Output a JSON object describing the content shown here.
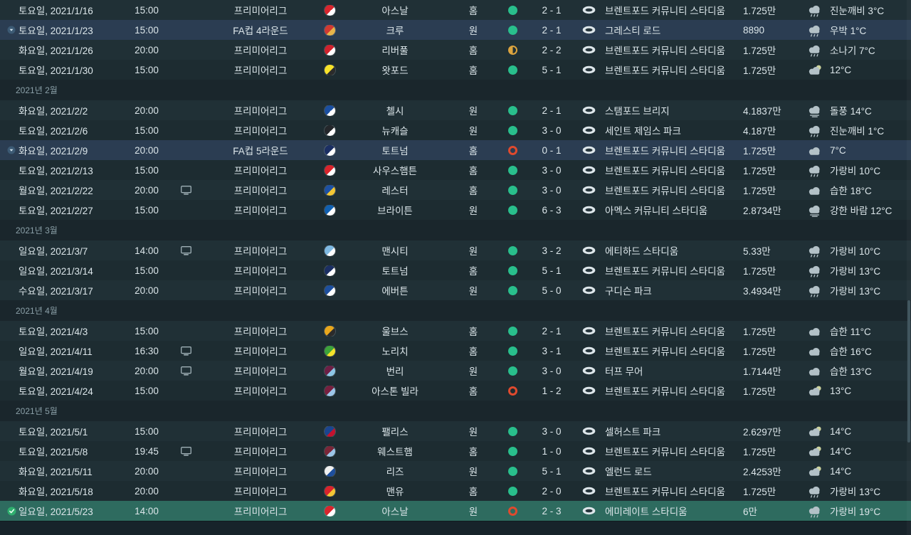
{
  "colors": {
    "background": "#1d2a30",
    "win": "#29bf8c",
    "draw": "#dca43f",
    "loss": "#df4a2e",
    "cup_row": "#2b3d52",
    "selected_row": "#2e6b5f"
  },
  "rows": [
    {
      "kind": "match",
      "date": "토요일, 2021/1/16",
      "time": "15:00",
      "tv": false,
      "competition": "프리미어리그",
      "team": "아스날",
      "badge": [
        "#d8262e",
        "#ffffff"
      ],
      "venue": "홈",
      "result": "win",
      "score": "2 - 1",
      "stadium": "브렌트포드 커뮤니티 스타디움",
      "attendance": "1.725만",
      "weather": "진눈깨비 3°C",
      "weather_icon": "cloud-rain",
      "style": "normal",
      "marker": null
    },
    {
      "kind": "match",
      "date": "토요일, 2021/1/23",
      "time": "15:00",
      "tv": false,
      "competition": "FA컵 4라운드",
      "team": "크루",
      "badge": [
        "#d03a32",
        "#e8b54a"
      ],
      "venue": "원",
      "result": "win",
      "score": "2 - 1",
      "stadium": "그레스티 로드",
      "attendance": "8890",
      "weather": "우박 1°C",
      "weather_icon": "cloud-rain",
      "style": "cup",
      "marker": "cup"
    },
    {
      "kind": "match",
      "date": "화요일, 2021/1/26",
      "time": "20:00",
      "tv": false,
      "competition": "프리미어리그",
      "team": "리버풀",
      "badge": [
        "#cf222d",
        "#ffffff"
      ],
      "venue": "홈",
      "result": "draw",
      "score": "2 - 2",
      "stadium": "브렌트포드 커뮤니티 스타디움",
      "attendance": "1.725만",
      "weather": "소나기 7°C",
      "weather_icon": "cloud-rain",
      "style": "normal",
      "marker": null
    },
    {
      "kind": "match",
      "date": "토요일, 2021/1/30",
      "time": "15:00",
      "tv": false,
      "competition": "프리미어리그",
      "team": "왓포드",
      "badge": [
        "#f7e32a",
        "#2b2b2b"
      ],
      "venue": "홈",
      "result": "win",
      "score": "5 - 1",
      "stadium": "브렌트포드 커뮤니티 스타디움",
      "attendance": "1.725만",
      "weather": "12°C",
      "weather_icon": "cloud-sun",
      "style": "normal",
      "marker": null
    },
    {
      "kind": "month",
      "label": "2021년 2월"
    },
    {
      "kind": "match",
      "date": "화요일, 2021/2/2",
      "time": "20:00",
      "tv": false,
      "competition": "프리미어리그",
      "team": "첼시",
      "badge": [
        "#1b4fa0",
        "#ffffff"
      ],
      "venue": "원",
      "result": "win",
      "score": "2 - 1",
      "stadium": "스탬포드 브리지",
      "attendance": "4.1837만",
      "weather": "돌풍 14°C",
      "weather_icon": "cloud-wind",
      "style": "normal",
      "marker": null
    },
    {
      "kind": "match",
      "date": "토요일, 2021/2/6",
      "time": "15:00",
      "tv": false,
      "competition": "프리미어리그",
      "team": "뉴캐슬",
      "badge": [
        "#24272b",
        "#ffffff"
      ],
      "venue": "원",
      "result": "win",
      "score": "3 - 0",
      "stadium": "세인트 제임스 파크",
      "attendance": "4.187만",
      "weather": "진눈깨비 1°C",
      "weather_icon": "cloud-rain",
      "style": "normal",
      "marker": null
    },
    {
      "kind": "match",
      "date": "화요일, 2021/2/9",
      "time": "20:00",
      "tv": false,
      "competition": "FA컵 5라운드",
      "team": "토트넘",
      "badge": [
        "#1b2f63",
        "#ffffff"
      ],
      "venue": "홈",
      "result": "loss",
      "score": "0 - 1",
      "stadium": "브렌트포드 커뮤니티 스타디움",
      "attendance": "1.725만",
      "weather": "7°C",
      "weather_icon": "cloud",
      "style": "cup",
      "marker": "cup"
    },
    {
      "kind": "match",
      "date": "토요일, 2021/2/13",
      "time": "15:00",
      "tv": false,
      "competition": "프리미어리그",
      "team": "사우스햄튼",
      "badge": [
        "#d8242c",
        "#ffffff"
      ],
      "venue": "홈",
      "result": "win",
      "score": "3 - 0",
      "stadium": "브렌트포드 커뮤니티 스타디움",
      "attendance": "1.725만",
      "weather": "가랑비 10°C",
      "weather_icon": "cloud-rain",
      "style": "normal",
      "marker": null
    },
    {
      "kind": "match",
      "date": "월요일, 2021/2/22",
      "time": "20:00",
      "tv": true,
      "competition": "프리미어리그",
      "team": "레스터",
      "badge": [
        "#1d51a3",
        "#f3c735"
      ],
      "venue": "홈",
      "result": "win",
      "score": "3 - 0",
      "stadium": "브렌트포드 커뮤니티 스타디움",
      "attendance": "1.725만",
      "weather": "습한 18°C",
      "weather_icon": "cloud",
      "style": "normal",
      "marker": null
    },
    {
      "kind": "match",
      "date": "토요일, 2021/2/27",
      "time": "15:00",
      "tv": false,
      "competition": "프리미어리그",
      "team": "브라이튼",
      "badge": [
        "#1160b0",
        "#ffffff"
      ],
      "venue": "원",
      "result": "win",
      "score": "6 - 3",
      "stadium": "아멕스 커뮤니티 스타디움",
      "attendance": "2.8734만",
      "weather": "강한 바람 12°C",
      "weather_icon": "cloud-wind",
      "style": "normal",
      "marker": null
    },
    {
      "kind": "month",
      "label": "2021년 3월"
    },
    {
      "kind": "match",
      "date": "일요일, 2021/3/7",
      "time": "14:00",
      "tv": true,
      "competition": "프리미어리그",
      "team": "맨시티",
      "badge": [
        "#7fb9e2",
        "#ffffff"
      ],
      "venue": "원",
      "result": "win",
      "score": "3 - 2",
      "stadium": "에티하드 스타디움",
      "attendance": "5.33만",
      "weather": "가랑비 10°C",
      "weather_icon": "cloud-rain",
      "style": "normal",
      "marker": null
    },
    {
      "kind": "match",
      "date": "일요일, 2021/3/14",
      "time": "15:00",
      "tv": false,
      "competition": "프리미어리그",
      "team": "토트넘",
      "badge": [
        "#1b2f63",
        "#ffffff"
      ],
      "venue": "홈",
      "result": "win",
      "score": "5 - 1",
      "stadium": "브렌트포드 커뮤니티 스타디움",
      "attendance": "1.725만",
      "weather": "가랑비 13°C",
      "weather_icon": "cloud-rain",
      "style": "normal",
      "marker": null
    },
    {
      "kind": "match",
      "date": "수요일, 2021/3/17",
      "time": "20:00",
      "tv": false,
      "competition": "프리미어리그",
      "team": "에버튼",
      "badge": [
        "#1d4f9e",
        "#ffffff"
      ],
      "venue": "원",
      "result": "win",
      "score": "5 - 0",
      "stadium": "구디슨 파크",
      "attendance": "3.4934만",
      "weather": "가랑비 13°C",
      "weather_icon": "cloud-rain",
      "style": "normal",
      "marker": null
    },
    {
      "kind": "month",
      "label": "2021년 4월"
    },
    {
      "kind": "match",
      "date": "토요일, 2021/4/3",
      "time": "15:00",
      "tv": false,
      "competition": "프리미어리그",
      "team": "울브스",
      "badge": [
        "#e8a71c",
        "#2b2b2b"
      ],
      "venue": "홈",
      "result": "win",
      "score": "2 - 1",
      "stadium": "브렌트포드 커뮤니티 스타디움",
      "attendance": "1.725만",
      "weather": "습한 11°C",
      "weather_icon": "cloud",
      "style": "normal",
      "marker": null
    },
    {
      "kind": "match",
      "date": "일요일, 2021/4/11",
      "time": "16:30",
      "tv": true,
      "competition": "프리미어리그",
      "team": "노리치",
      "badge": [
        "#3da33b",
        "#f3e32a"
      ],
      "venue": "홈",
      "result": "win",
      "score": "3 - 1",
      "stadium": "브렌트포드 커뮤니티 스타디움",
      "attendance": "1.725만",
      "weather": "습한 16°C",
      "weather_icon": "cloud",
      "style": "normal",
      "marker": null
    },
    {
      "kind": "match",
      "date": "월요일, 2021/4/19",
      "time": "20:00",
      "tv": true,
      "competition": "프리미어리그",
      "team": "번리",
      "badge": [
        "#6d1f45",
        "#8ec6e6"
      ],
      "venue": "원",
      "result": "win",
      "score": "3 - 0",
      "stadium": "터프 무어",
      "attendance": "1.7144만",
      "weather": "습한 13°C",
      "weather_icon": "cloud",
      "style": "normal",
      "marker": null
    },
    {
      "kind": "match",
      "date": "토요일, 2021/4/24",
      "time": "15:00",
      "tv": false,
      "competition": "프리미어리그",
      "team": "아스톤 빌라",
      "badge": [
        "#77203f",
        "#9cc6e8"
      ],
      "venue": "홈",
      "result": "loss",
      "score": "1 - 2",
      "stadium": "브렌트포드 커뮤니티 스타디움",
      "attendance": "1.725만",
      "weather": "13°C",
      "weather_icon": "cloud-sun",
      "style": "normal",
      "marker": null
    },
    {
      "kind": "month",
      "label": "2021년 5월"
    },
    {
      "kind": "match",
      "date": "토요일, 2021/5/1",
      "time": "15:00",
      "tv": false,
      "competition": "프리미어리그",
      "team": "팰리스",
      "badge": [
        "#1b458f",
        "#c4122e"
      ],
      "venue": "원",
      "result": "win",
      "score": "3 - 0",
      "stadium": "셀허스트 파크",
      "attendance": "2.6297만",
      "weather": "14°C",
      "weather_icon": "cloud-sun",
      "style": "normal",
      "marker": null
    },
    {
      "kind": "match",
      "date": "토요일, 2021/5/8",
      "time": "19:45",
      "tv": true,
      "competition": "프리미어리그",
      "team": "웨스트햄",
      "badge": [
        "#7a2638",
        "#9cc6e8"
      ],
      "venue": "홈",
      "result": "win",
      "score": "1 - 0",
      "stadium": "브렌트포드 커뮤니티 스타디움",
      "attendance": "1.725만",
      "weather": "14°C",
      "weather_icon": "cloud-sun",
      "style": "normal",
      "marker": null
    },
    {
      "kind": "match",
      "date": "화요일, 2021/5/11",
      "time": "20:00",
      "tv": false,
      "competition": "프리미어리그",
      "team": "리즈",
      "badge": [
        "#f0f0f0",
        "#1d4f9e"
      ],
      "venue": "원",
      "result": "win",
      "score": "5 - 1",
      "stadium": "엘런드 로드",
      "attendance": "2.4253만",
      "weather": "14°C",
      "weather_icon": "cloud-sun",
      "style": "normal",
      "marker": null
    },
    {
      "kind": "match",
      "date": "화요일, 2021/5/18",
      "time": "20:00",
      "tv": false,
      "competition": "프리미어리그",
      "team": "맨유",
      "badge": [
        "#d8242c",
        "#f3c735"
      ],
      "venue": "홈",
      "result": "win",
      "score": "2 - 0",
      "stadium": "브렌트포드 커뮤니티 스타디움",
      "attendance": "1.725만",
      "weather": "가랑비 13°C",
      "weather_icon": "cloud-rain",
      "style": "normal",
      "marker": null
    },
    {
      "kind": "match",
      "date": "일요일, 2021/5/23",
      "time": "14:00",
      "tv": false,
      "competition": "프리미어리그",
      "team": "아스날",
      "badge": [
        "#d8262e",
        "#ffffff"
      ],
      "venue": "원",
      "result": "loss",
      "score": "2 - 3",
      "stadium": "에미레이트 스타디움",
      "attendance": "6만",
      "weather": "가랑비 19°C",
      "weather_icon": "cloud-rain",
      "style": "selected",
      "marker": "green"
    }
  ]
}
